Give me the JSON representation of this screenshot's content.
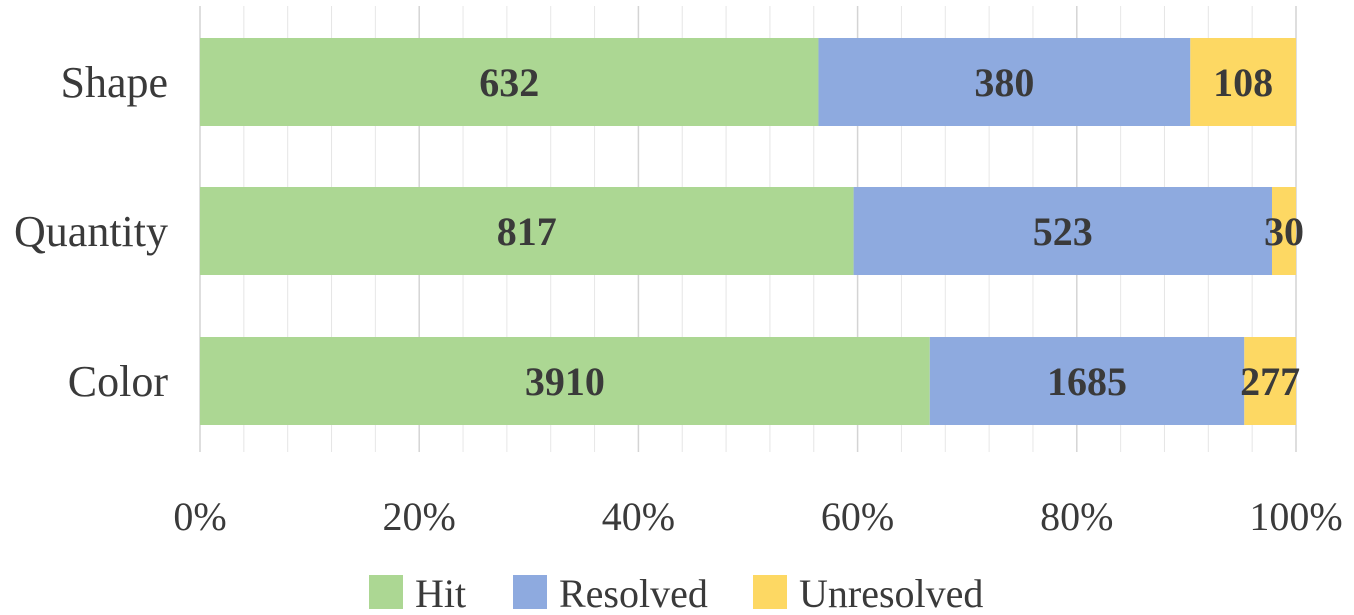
{
  "chart_data": {
    "type": "bar",
    "orientation": "horizontal",
    "stacked": "percent",
    "categories": [
      "Shape",
      "Quantity",
      "Color"
    ],
    "series": [
      {
        "name": "Hit",
        "values": [
          632,
          817,
          3910
        ],
        "color": "#acd793"
      },
      {
        "name": "Resolved",
        "values": [
          380,
          523,
          1685
        ],
        "color": "#8eaadf"
      },
      {
        "name": "Unresolved",
        "values": [
          108,
          30,
          277
        ],
        "color": "#fdd863"
      }
    ],
    "x_ticks": [
      "0%",
      "20%",
      "40%",
      "60%",
      "80%",
      "100%"
    ],
    "xlim": [
      0,
      100
    ],
    "grid": true,
    "legend": "bottom"
  }
}
